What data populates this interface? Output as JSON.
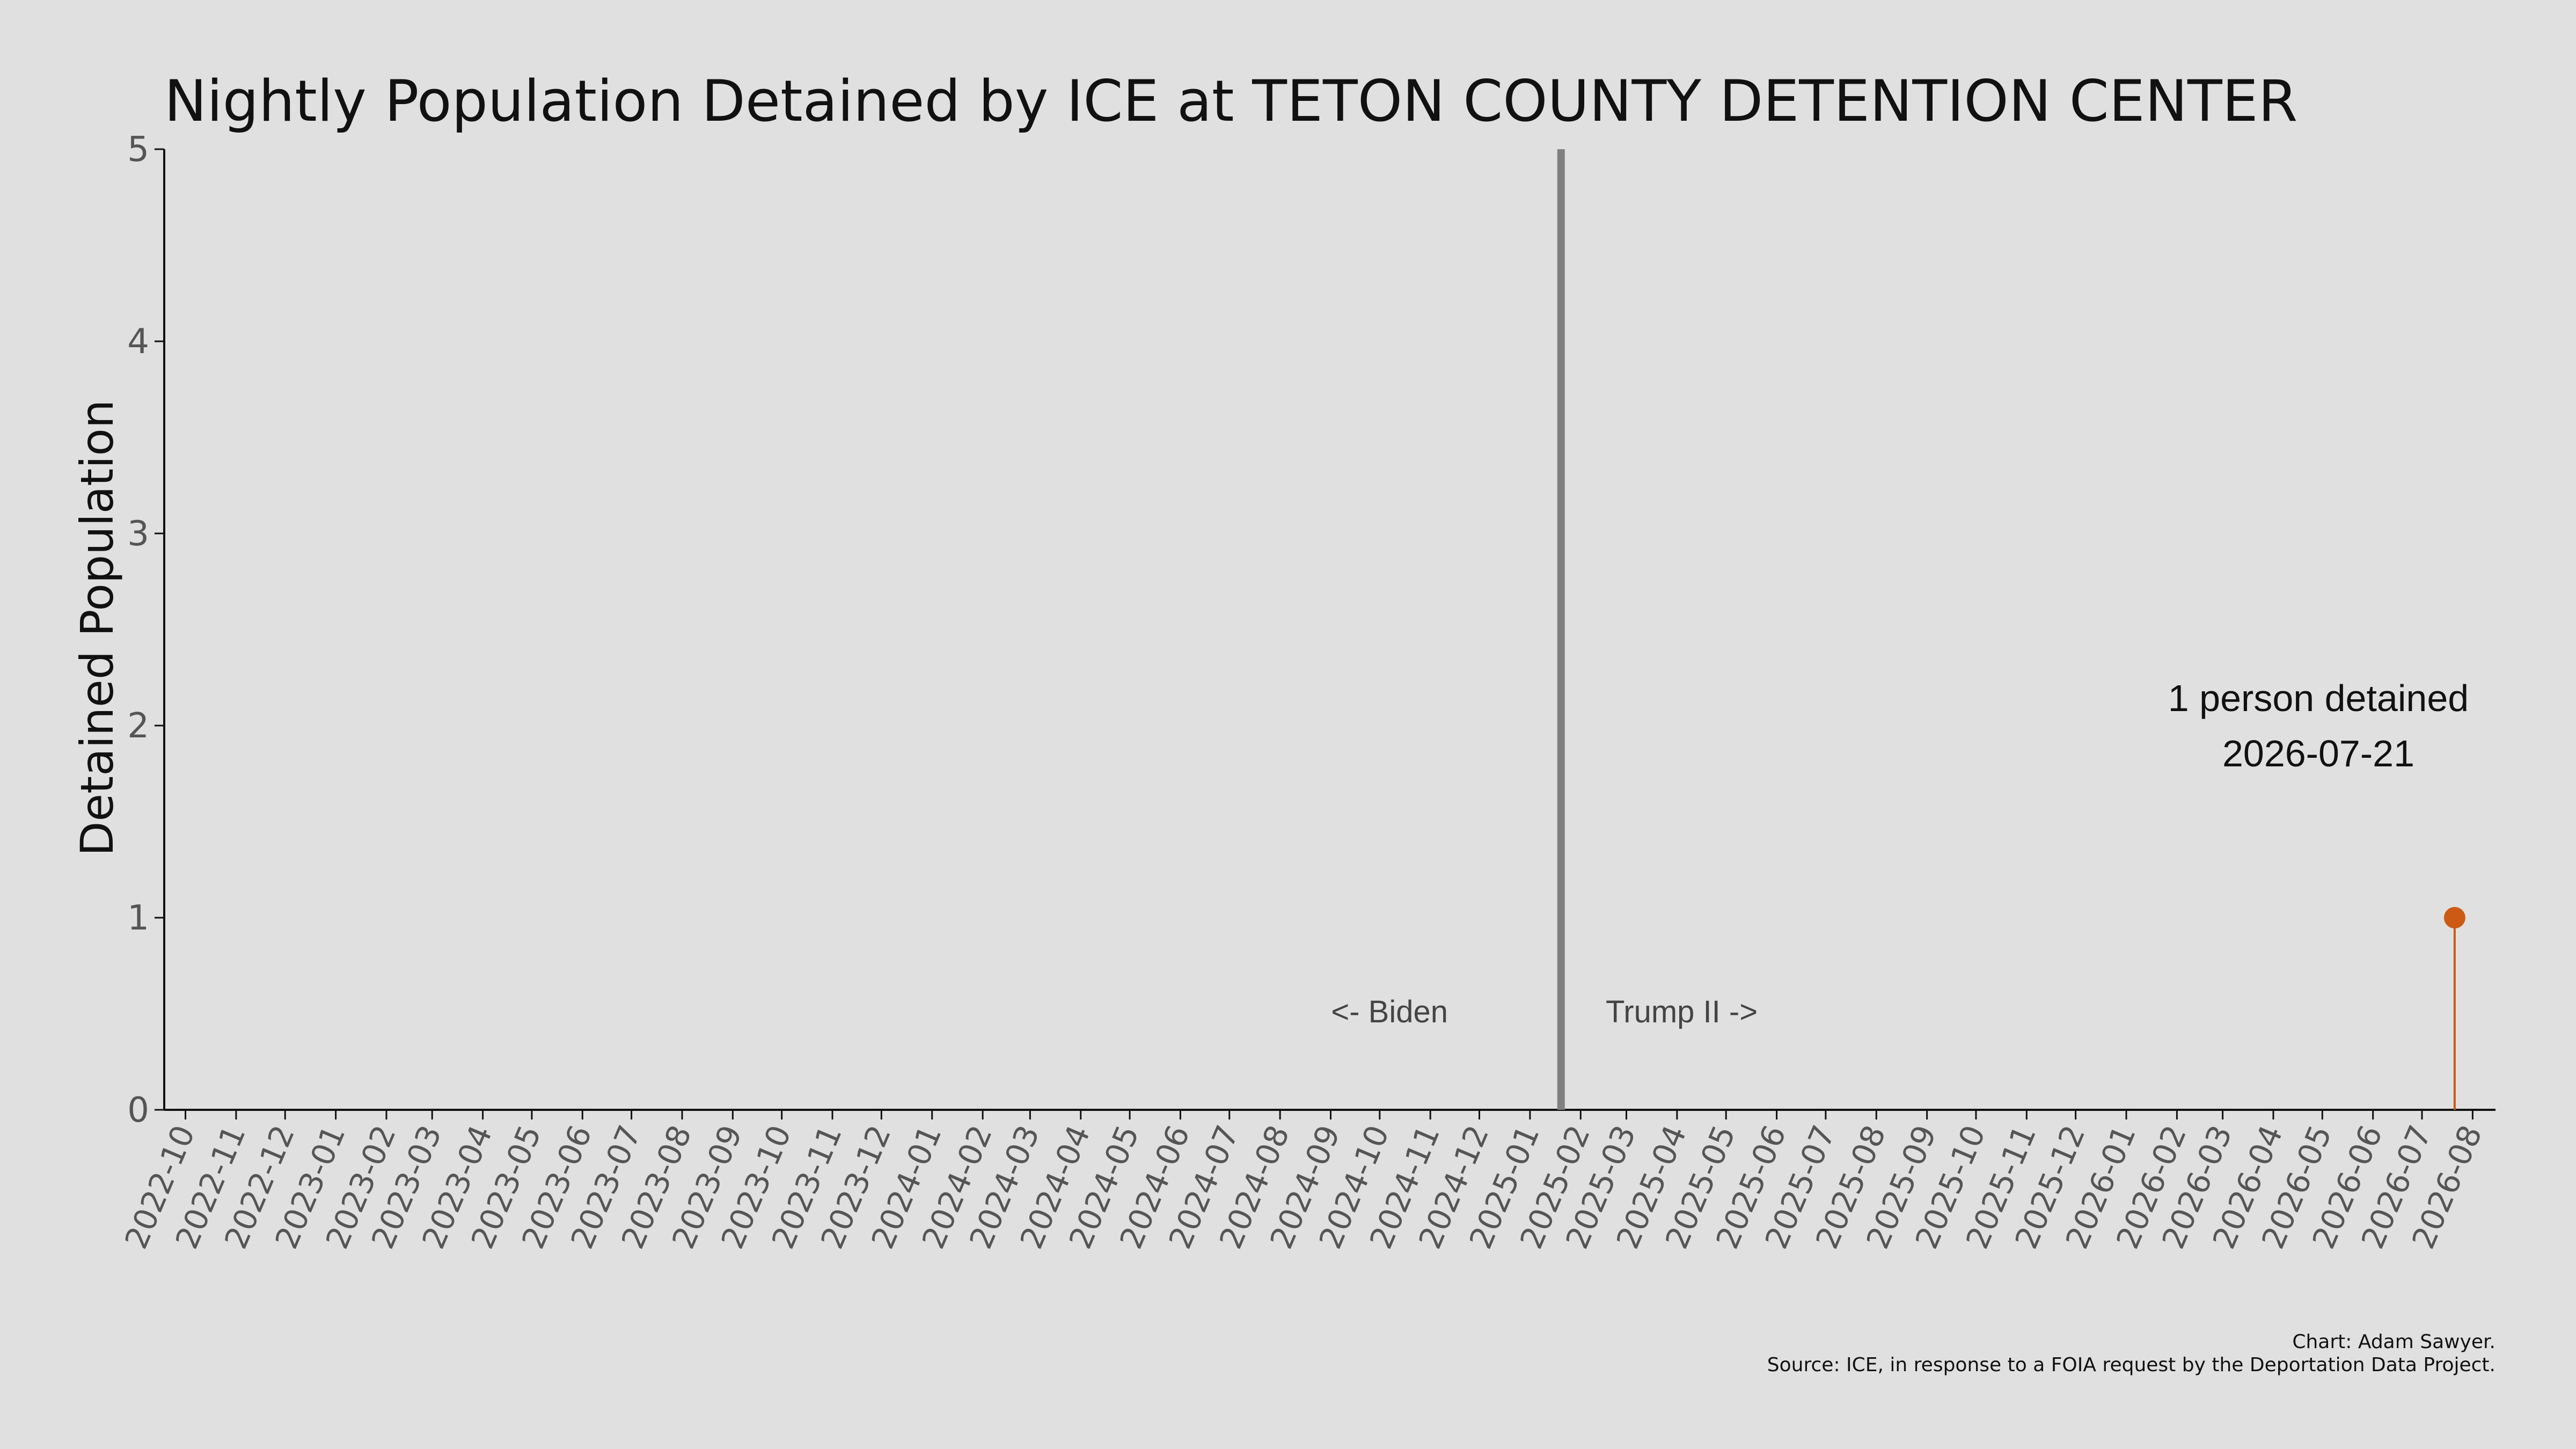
{
  "chart_data": {
    "type": "line",
    "title": "Nightly Population Detained by ICE at TETON COUNTY DETENTION CENTER",
    "xlabel": "",
    "ylabel": "Detained Population",
    "x_range": [
      "2022-09-18",
      "2026-08-15"
    ],
    "ylim": [
      0,
      5
    ],
    "y_ticks": [
      0,
      1,
      2,
      3,
      4,
      5
    ],
    "x_ticks": [
      "2022-10",
      "2022-11",
      "2022-12",
      "2023-01",
      "2023-02",
      "2023-03",
      "2023-04",
      "2023-05",
      "2023-06",
      "2023-07",
      "2023-08",
      "2023-09",
      "2023-10",
      "2023-11",
      "2023-12",
      "2024-01",
      "2024-02",
      "2024-03",
      "2024-04",
      "2024-05",
      "2024-06",
      "2024-07",
      "2024-08",
      "2024-09",
      "2024-10",
      "2024-11",
      "2024-12",
      "2025-01",
      "2025-02",
      "2025-03",
      "2025-04",
      "2025-05",
      "2025-06",
      "2025-07",
      "2025-08",
      "2025-09",
      "2025-10",
      "2025-11",
      "2025-12",
      "2026-01",
      "2026-02",
      "2026-03",
      "2026-04",
      "2026-05",
      "2026-06",
      "2026-07",
      "2026-08"
    ],
    "grid": false,
    "series": [
      {
        "color": "#cc5a14",
        "points": [
          {
            "x": "2026-07-21",
            "y": 1
          }
        ]
      }
    ],
    "annotations": {
      "divider_date": "2025-01-20",
      "divider_color": "#808080",
      "left_label": "<- Biden",
      "right_label": "Trump II ->",
      "callout_line1": "1 person detained",
      "callout_line2": "2026-07-21"
    },
    "credits": {
      "line1": "Chart: Adam Sawyer.",
      "line2": "Source: ICE, in response to a FOIA request by the Deportation Data Project."
    }
  }
}
